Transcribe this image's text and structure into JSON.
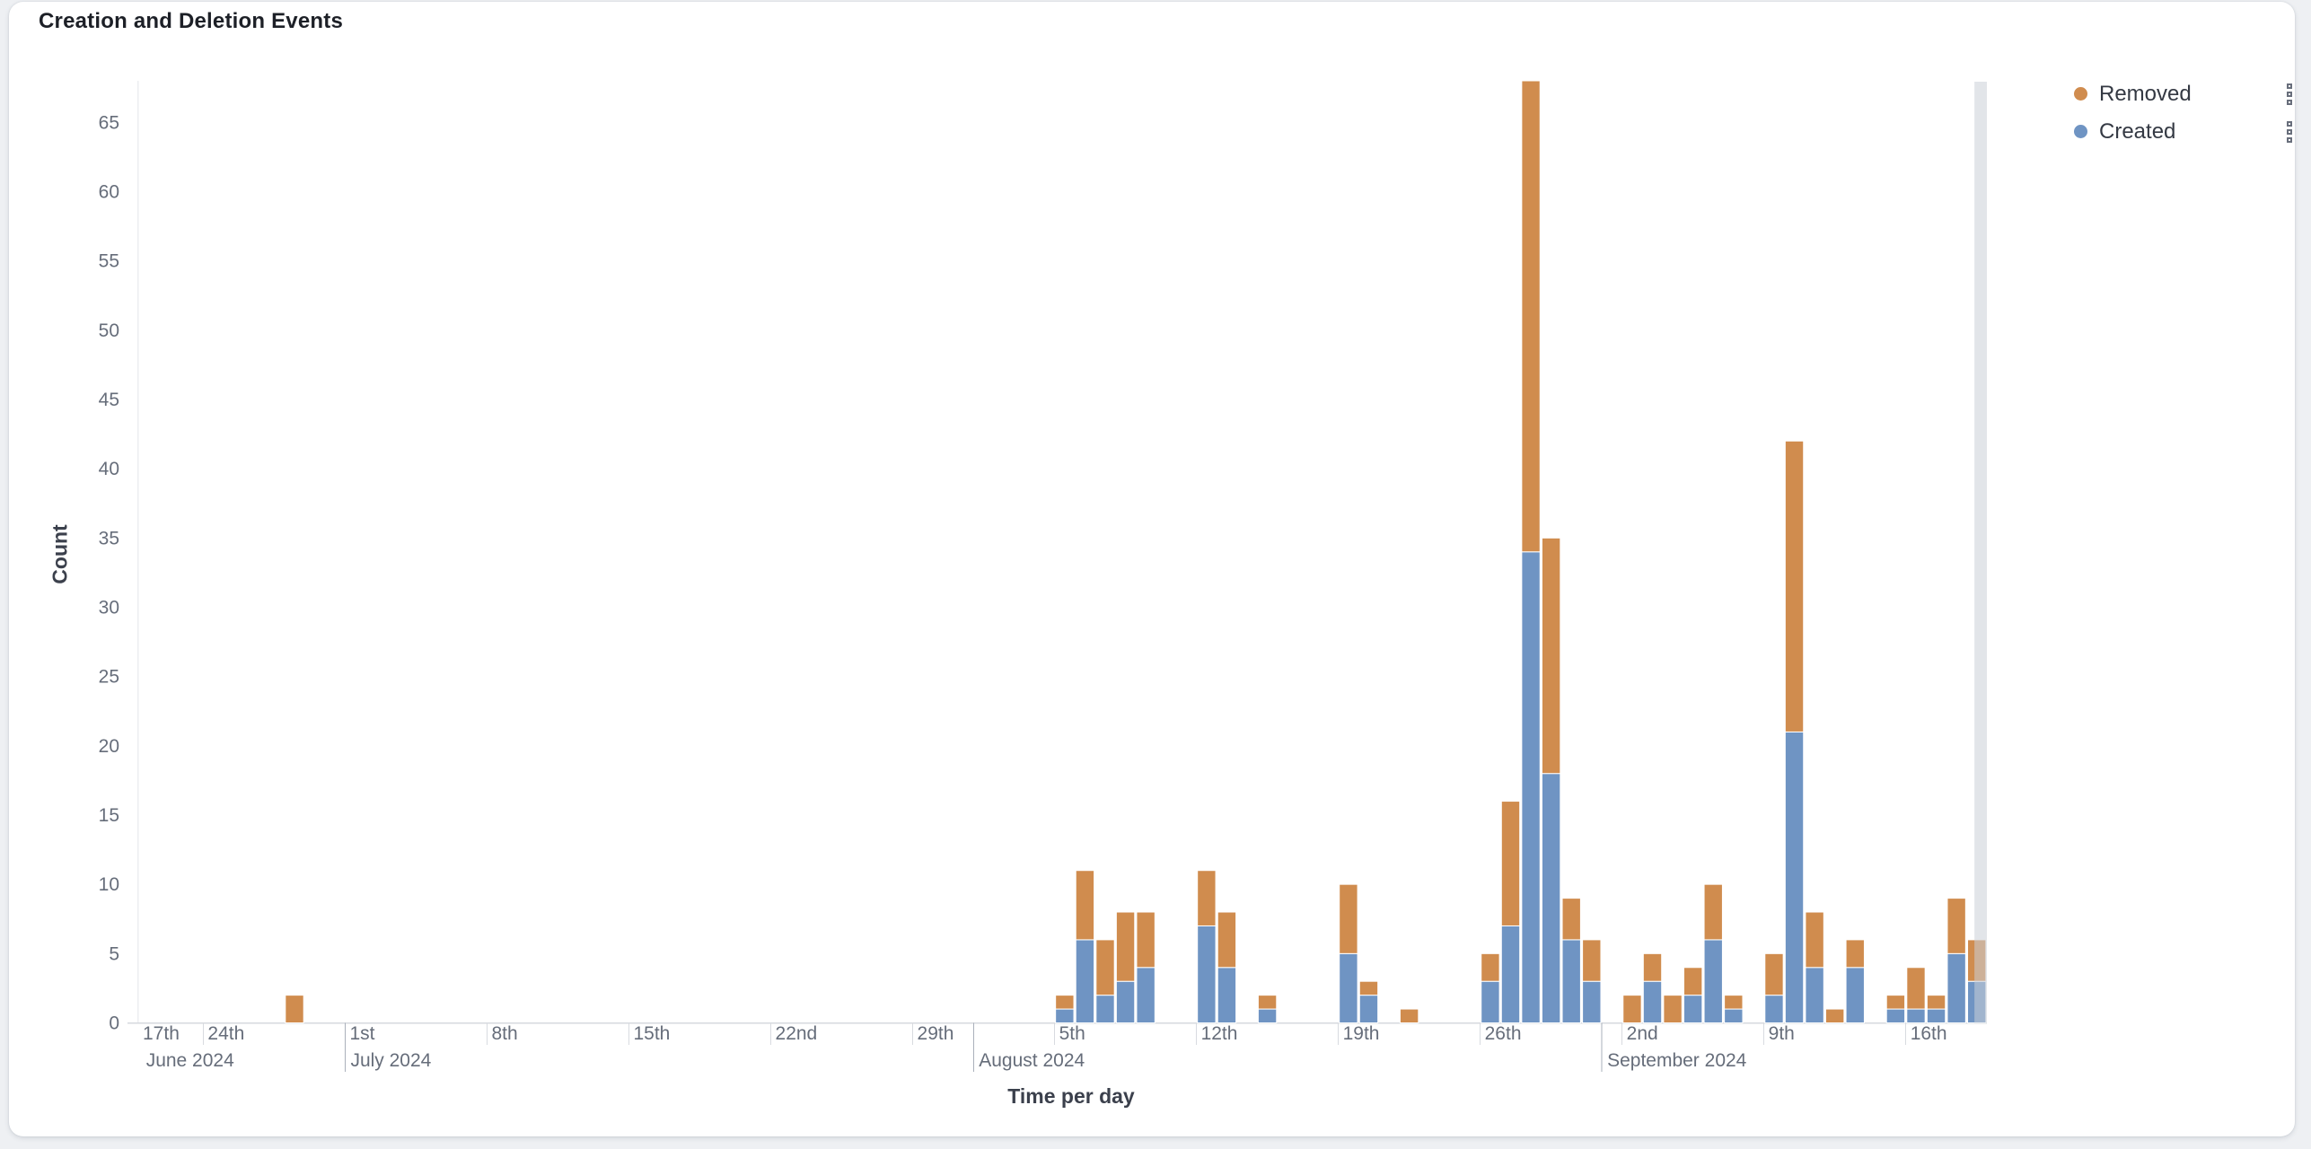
{
  "panel": {
    "title": "Creation and Deletion Events"
  },
  "legend": {
    "items": [
      {
        "label": "Removed",
        "color": "#D08C4E"
      },
      {
        "label": "Created",
        "color": "#6F94C3"
      }
    ]
  },
  "chart_data": {
    "type": "bar",
    "stacked": true,
    "title": "Creation and Deletion Events",
    "xlabel": "Time per day",
    "ylabel": "Count",
    "ylim": [
      0,
      68
    ],
    "y_ticks": [
      0,
      5,
      10,
      15,
      20,
      25,
      30,
      35,
      40,
      45,
      50,
      55,
      60,
      65
    ],
    "grid": "off",
    "legend_position": "top-right",
    "x_axis": {
      "start": "2024-06-20T19:00:00Z",
      "end": "2024-09-20T00:00:00Z",
      "week_ticks": [
        {
          "date": "2024-06-17",
          "label": "17th"
        },
        {
          "date": "2024-06-24",
          "label": "24th"
        },
        {
          "date": "2024-07-01",
          "label": "1st"
        },
        {
          "date": "2024-07-08",
          "label": "8th"
        },
        {
          "date": "2024-07-15",
          "label": "15th"
        },
        {
          "date": "2024-07-22",
          "label": "22nd"
        },
        {
          "date": "2024-07-29",
          "label": "29th"
        },
        {
          "date": "2024-08-05",
          "label": "5th"
        },
        {
          "date": "2024-08-12",
          "label": "12th"
        },
        {
          "date": "2024-08-19",
          "label": "19th"
        },
        {
          "date": "2024-08-26",
          "label": "26th"
        },
        {
          "date": "2024-09-02",
          "label": "2nd"
        },
        {
          "date": "2024-09-09",
          "label": "9th"
        },
        {
          "date": "2024-09-16",
          "label": "16th"
        }
      ],
      "months": [
        {
          "date": "2024-06-21",
          "label": "June 2024",
          "line": false
        },
        {
          "date": "2024-07-01",
          "label": "July 2024",
          "line": true
        },
        {
          "date": "2024-08-01",
          "label": "August 2024",
          "line": true
        },
        {
          "date": "2024-09-01",
          "label": "September 2024",
          "line": true
        }
      ]
    },
    "series": [
      {
        "name": "Created",
        "color": "#6F94C3"
      },
      {
        "name": "Removed",
        "color": "#D08C4E"
      }
    ],
    "bars": [
      {
        "date": "2024-06-28",
        "created": 0,
        "removed": 2
      },
      {
        "date": "2024-08-05",
        "created": 1,
        "removed": 1
      },
      {
        "date": "2024-08-06",
        "created": 6,
        "removed": 5
      },
      {
        "date": "2024-08-07",
        "created": 2,
        "removed": 4
      },
      {
        "date": "2024-08-08",
        "created": 3,
        "removed": 5
      },
      {
        "date": "2024-08-09",
        "created": 4,
        "removed": 4
      },
      {
        "date": "2024-08-12",
        "created": 7,
        "removed": 4
      },
      {
        "date": "2024-08-13",
        "created": 4,
        "removed": 4
      },
      {
        "date": "2024-08-15",
        "created": 1,
        "removed": 1
      },
      {
        "date": "2024-08-19",
        "created": 5,
        "removed": 5
      },
      {
        "date": "2024-08-20",
        "created": 2,
        "removed": 1
      },
      {
        "date": "2024-08-22",
        "created": 0,
        "removed": 1
      },
      {
        "date": "2024-08-26",
        "created": 3,
        "removed": 2
      },
      {
        "date": "2024-08-27",
        "created": 7,
        "removed": 9
      },
      {
        "date": "2024-08-28",
        "created": 34,
        "removed": 34
      },
      {
        "date": "2024-08-29",
        "created": 18,
        "removed": 17
      },
      {
        "date": "2024-08-30",
        "created": 6,
        "removed": 3
      },
      {
        "date": "2024-08-31",
        "created": 3,
        "removed": 3
      },
      {
        "date": "2024-09-02",
        "created": 0,
        "removed": 2
      },
      {
        "date": "2024-09-03",
        "created": 3,
        "removed": 2
      },
      {
        "date": "2024-09-04",
        "created": 0,
        "removed": 2
      },
      {
        "date": "2024-09-05",
        "created": 2,
        "removed": 2
      },
      {
        "date": "2024-09-06",
        "created": 6,
        "removed": 4
      },
      {
        "date": "2024-09-07",
        "created": 1,
        "removed": 1
      },
      {
        "date": "2024-09-09",
        "created": 2,
        "removed": 3
      },
      {
        "date": "2024-09-10",
        "created": 21,
        "removed": 21
      },
      {
        "date": "2024-09-11",
        "created": 4,
        "removed": 4
      },
      {
        "date": "2024-09-12",
        "created": 0,
        "removed": 1
      },
      {
        "date": "2024-09-13",
        "created": 4,
        "removed": 2
      },
      {
        "date": "2024-09-15",
        "created": 1,
        "removed": 1
      },
      {
        "date": "2024-09-16",
        "created": 1,
        "removed": 3
      },
      {
        "date": "2024-09-17",
        "created": 1,
        "removed": 1
      },
      {
        "date": "2024-09-18",
        "created": 5,
        "removed": 4
      },
      {
        "date": "2024-09-19",
        "created": 3,
        "removed": 3
      }
    ],
    "now_band": {
      "from": "2024-09-19T09:15:00Z",
      "to": "2024-09-20T00:00:00Z",
      "color": "rgba(203,207,215,0.55)"
    }
  }
}
